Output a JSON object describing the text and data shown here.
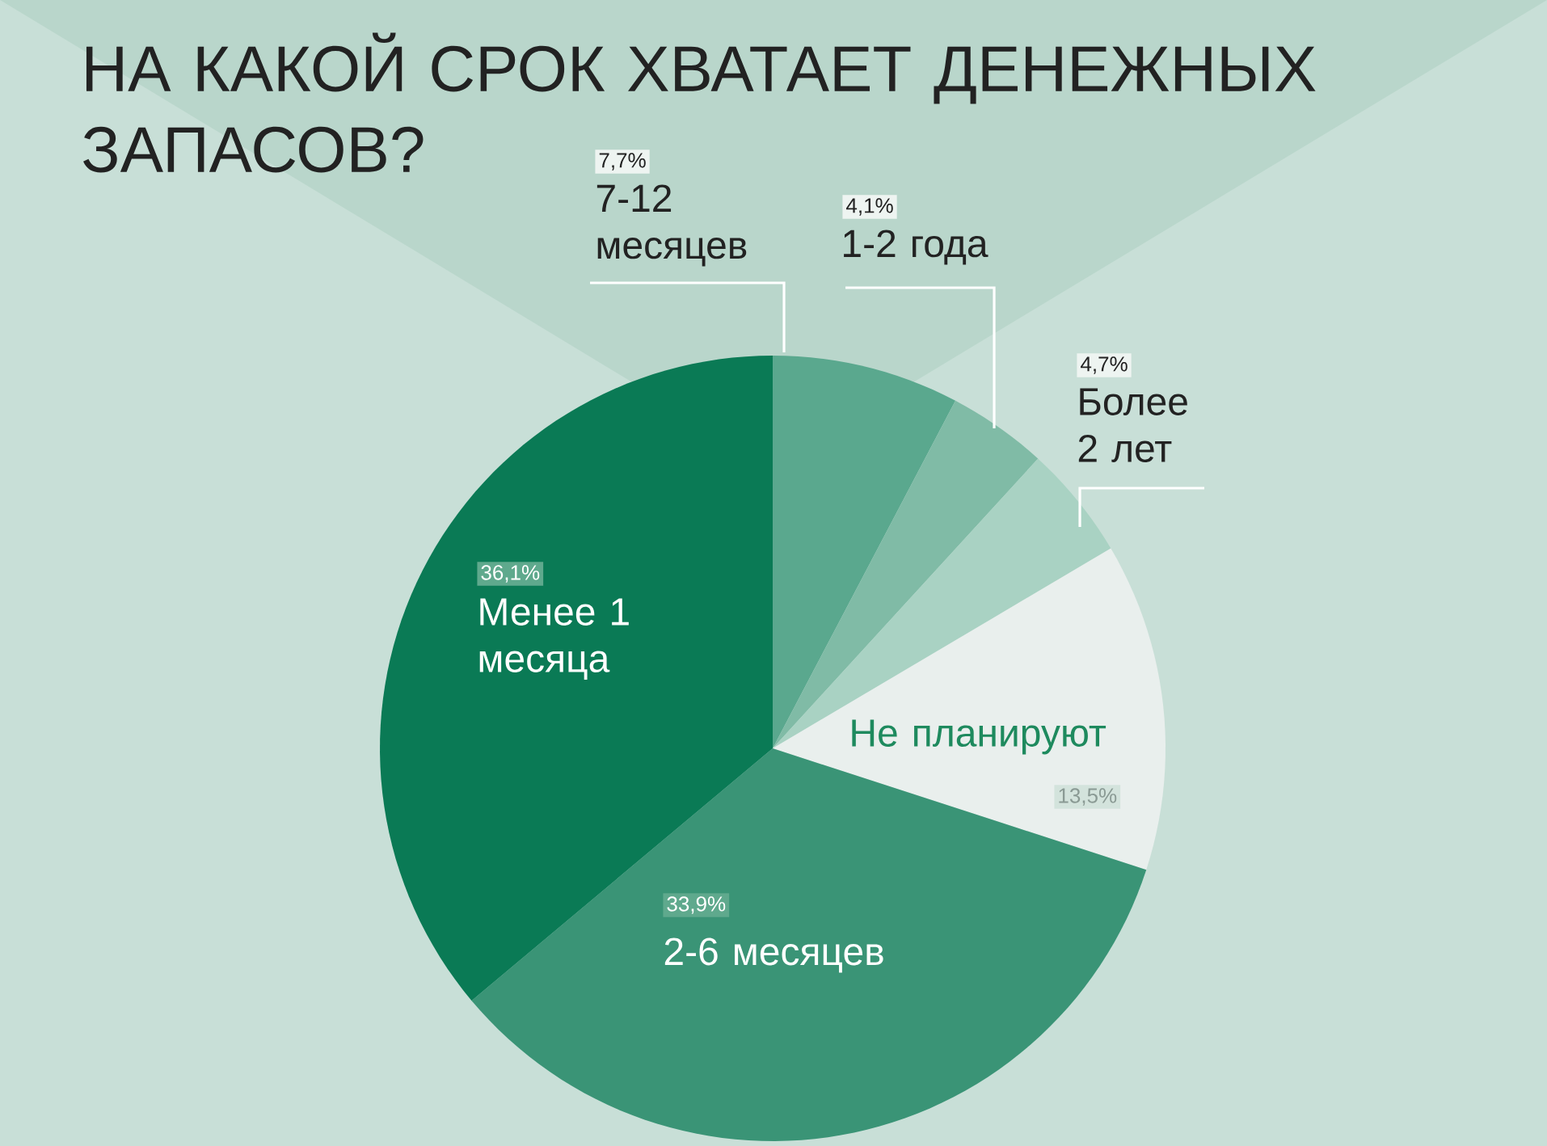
{
  "chart_data": {
    "type": "pie",
    "title": "НА КАКОЙ СРОК ХВАТАЕТ ДЕНЕЖНЫХ ЗАПАСОВ?",
    "categories": [
      "7-12 месяцев",
      "1-2 года",
      "Более 2 лет",
      "Не планируют",
      "2-6 месяцев",
      "Менее 1 месяца"
    ],
    "values": [
      7.7,
      4.1,
      4.7,
      13.5,
      33.9,
      36.1
    ],
    "value_labels": [
      "7,7%",
      "4,1%",
      "4,7%",
      "13,5%",
      "33,9%",
      "36,1%"
    ],
    "colors": [
      "#5aa88e",
      "#80bba6",
      "#a9d2c3",
      "#e9efed",
      "#3a9476",
      "#0a7a55"
    ]
  }
}
